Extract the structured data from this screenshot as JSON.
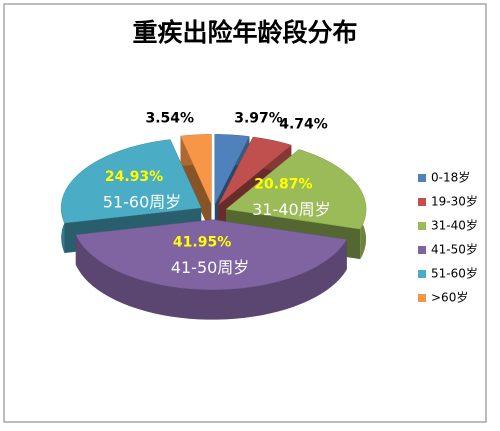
{
  "chart_data": {
    "type": "pie3d",
    "title": "重疾出险年龄段分布",
    "categories": [
      "0-18岁",
      "19-30岁",
      "31-40岁",
      "41-50岁",
      "51-60岁",
      ">60岁"
    ],
    "values": [
      3.97,
      4.74,
      20.87,
      41.95,
      24.93,
      3.54
    ],
    "value_labels": [
      "3.97%",
      "4.74%",
      "20.87%",
      "41.95%",
      "24.93%",
      "3.54%"
    ],
    "slice_labels": [
      null,
      null,
      "31-40周岁",
      "41-50周岁",
      "51-60周岁",
      null
    ],
    "colors": [
      "#4f81bd",
      "#c0504d",
      "#9bbb59",
      "#8064a2",
      "#4bacc6",
      "#f79646"
    ],
    "legend": "right"
  }
}
